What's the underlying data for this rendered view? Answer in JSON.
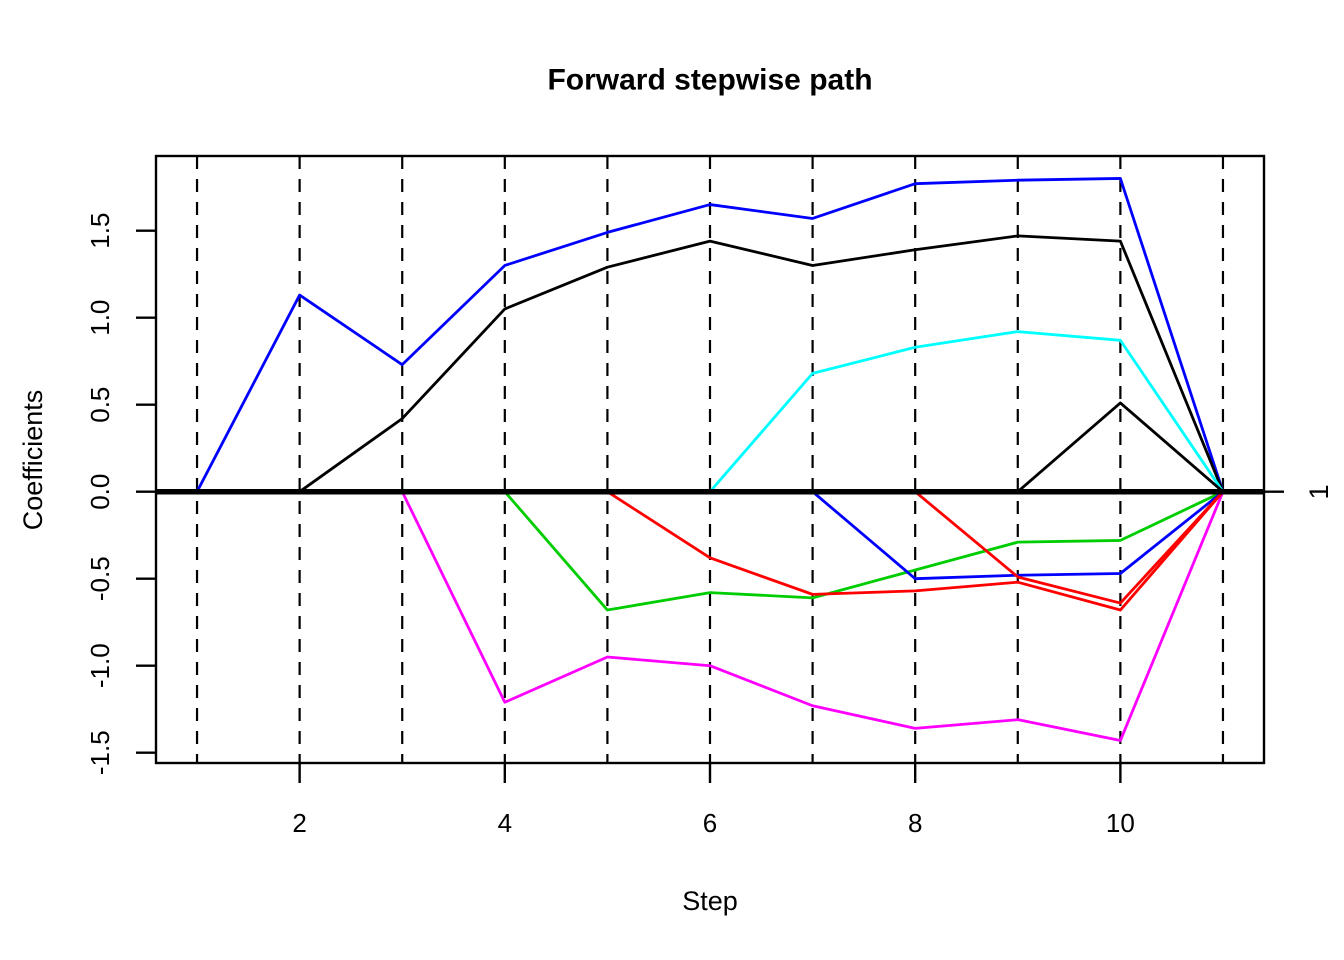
{
  "chart_data": {
    "type": "line",
    "title": "Forward stepwise path",
    "xlabel": "Step",
    "ylabel": "Coefficients",
    "right_axis_label": "1",
    "x_ticks": [
      2,
      4,
      6,
      8,
      10
    ],
    "x_tick_labels": [
      "2",
      "4",
      "6",
      "8",
      "10"
    ],
    "y_ticks": [
      -1.5,
      -1.0,
      -0.5,
      0.0,
      0.5,
      1.0,
      1.5
    ],
    "y_tick_labels": [
      "-1.5",
      "-1.0",
      "-0.5",
      "0.0",
      "0.5",
      "1.0",
      "1.5"
    ],
    "xlim": [
      0.6,
      11.4
    ],
    "ylim": [
      -1.559,
      1.929
    ],
    "steps": [
      1,
      2,
      3,
      4,
      5,
      6,
      7,
      8,
      9,
      10,
      11
    ],
    "grid": "vertical dashed line at each step",
    "legend": "none",
    "zero_line": {
      "y": 0,
      "color": "#000000"
    },
    "series": [
      {
        "name": "coef-blue-1",
        "color": "#0000FF",
        "start_step": 1,
        "values": [
          0,
          1.13,
          0.73,
          1.3,
          1.49,
          1.65,
          1.57,
          1.77,
          1.79,
          1.8,
          0
        ]
      },
      {
        "name": "coef-black-1",
        "color": "#000000",
        "start_step": 2,
        "values": [
          0,
          0.42,
          1.05,
          1.29,
          1.44,
          1.3,
          1.39,
          1.47,
          1.44,
          0
        ]
      },
      {
        "name": "coef-magenta-1",
        "color": "#FF00FF",
        "start_step": 3,
        "values": [
          0,
          -1.21,
          -0.95,
          -1.0,
          -1.23,
          -1.36,
          -1.31,
          -1.43,
          0
        ]
      },
      {
        "name": "coef-green-1",
        "color": "#00CD00",
        "start_step": 4,
        "values": [
          0,
          -0.68,
          -0.58,
          -0.61,
          -0.45,
          -0.29,
          -0.28,
          0
        ]
      },
      {
        "name": "coef-red-1",
        "color": "#FF0000",
        "start_step": 5,
        "values": [
          0,
          -0.38,
          -0.59,
          -0.57,
          -0.52,
          -0.68,
          0
        ]
      },
      {
        "name": "coef-cyan-1",
        "color": "#00FFFF",
        "start_step": 6,
        "values": [
          0,
          0.68,
          0.83,
          0.92,
          0.87,
          0
        ]
      },
      {
        "name": "coef-blue-2",
        "color": "#0000FF",
        "start_step": 7,
        "values": [
          0,
          -0.5,
          -0.48,
          -0.47,
          0
        ]
      },
      {
        "name": "coef-red-2",
        "color": "#FF0000",
        "start_step": 8,
        "values": [
          0,
          -0.49,
          -0.64,
          0
        ]
      },
      {
        "name": "coef-black-2",
        "color": "#000000",
        "start_step": 9,
        "values": [
          0,
          0.51,
          0
        ]
      }
    ],
    "colors": {
      "foreground": "#000000",
      "background": "#FFFFFF"
    }
  }
}
